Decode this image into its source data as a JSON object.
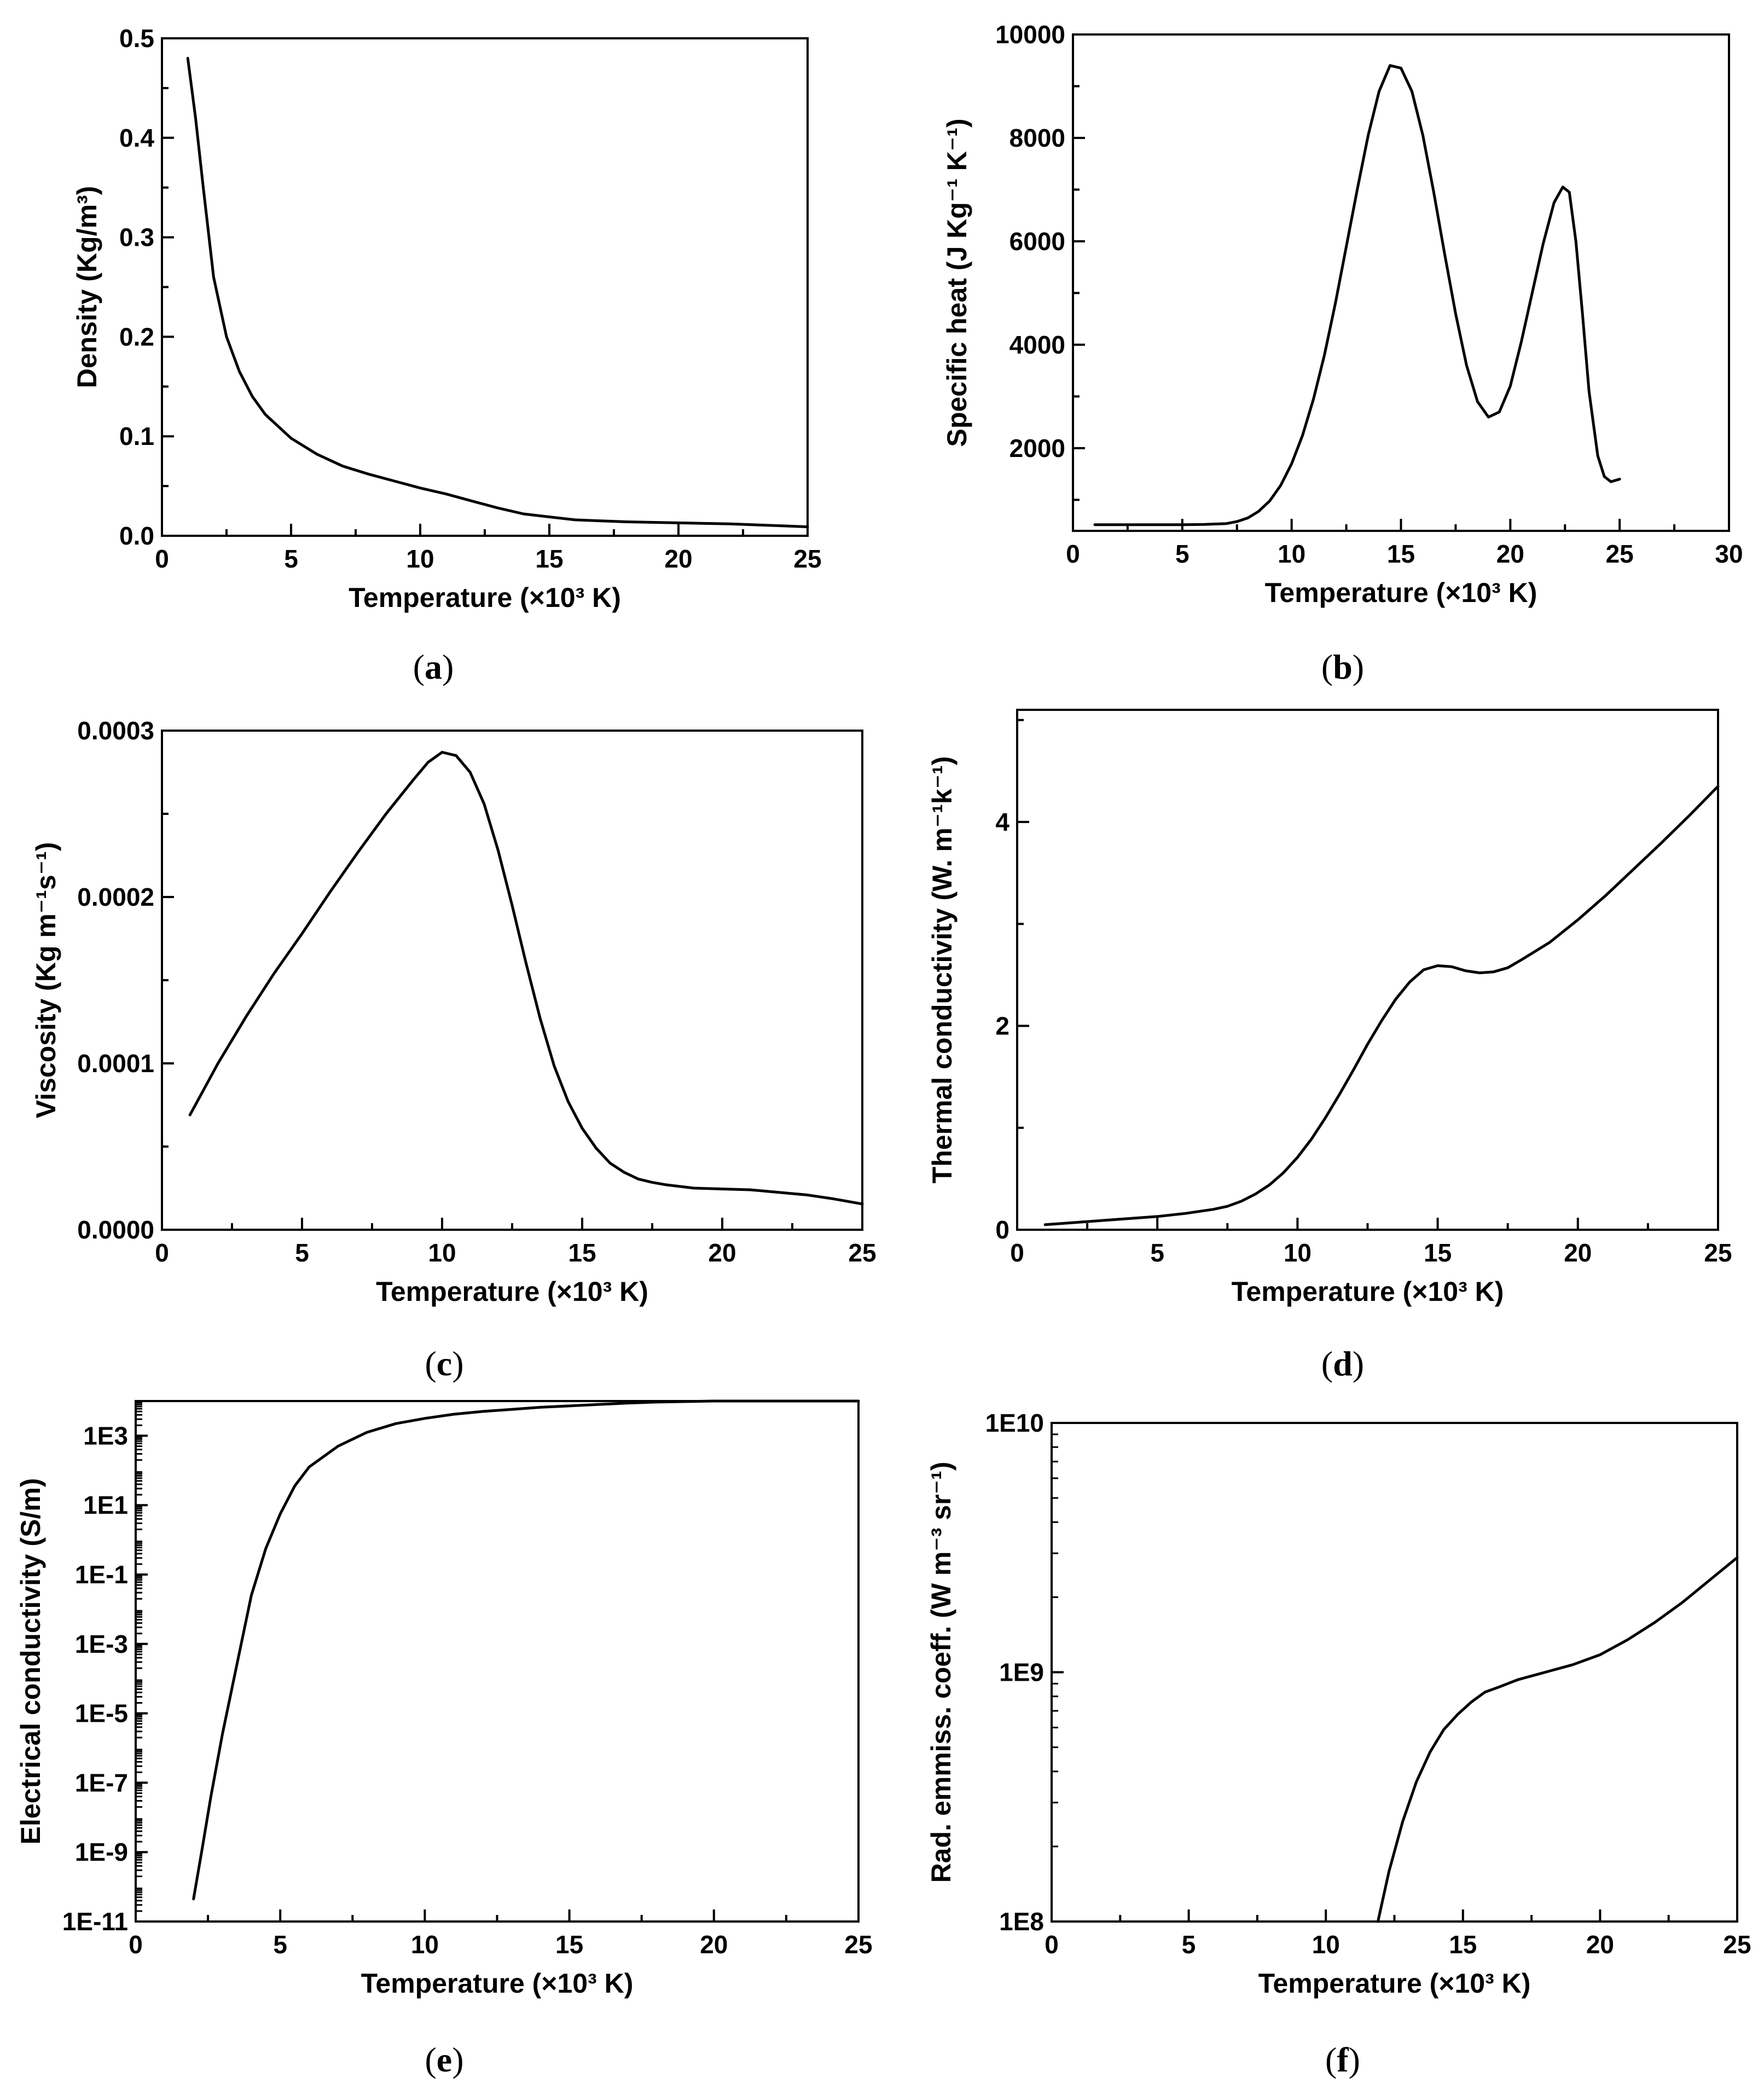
{
  "chart_data": [
    {
      "id": "a",
      "type": "line",
      "panel_label": "a",
      "xlabel": "Temperature (×10³ K)",
      "ylabel": "Density (Kg/m³)",
      "xlim": [
        0,
        25
      ],
      "ylim": [
        0,
        0.5
      ],
      "yscale": "linear",
      "x_ticks": [
        0,
        5,
        10,
        15,
        20,
        25
      ],
      "x_tick_labels": [
        "0",
        "5",
        "10",
        "15",
        "20",
        "25"
      ],
      "y_ticks": [
        0,
        0.1,
        0.2,
        0.3,
        0.4,
        0.5
      ],
      "y_tick_labels": [
        "0.0",
        "0.1",
        "0.2",
        "0.3",
        "0.4",
        "0.5"
      ],
      "series": [
        {
          "name": "Density",
          "x": [
            1.0,
            1.3,
            1.6,
            2.0,
            2.5,
            3.0,
            3.5,
            4.0,
            5.0,
            6.0,
            7.0,
            8.0,
            9.0,
            10.0,
            11.0,
            12.0,
            13.0,
            14.0,
            15.0,
            16.0,
            17.0,
            18.0,
            20.0,
            22.0,
            24.0,
            25.0
          ],
          "y": [
            0.48,
            0.42,
            0.35,
            0.26,
            0.2,
            0.165,
            0.14,
            0.122,
            0.098,
            0.082,
            0.07,
            0.062,
            0.055,
            0.048,
            0.042,
            0.035,
            0.028,
            0.022,
            0.019,
            0.016,
            0.015,
            0.014,
            0.013,
            0.012,
            0.01,
            0.009
          ]
        }
      ]
    },
    {
      "id": "b",
      "type": "line",
      "panel_label": "b",
      "xlabel": "Temperature (×10³ K)",
      "ylabel": "Specific heat (J Kg⁻¹ K⁻¹)",
      "xlim": [
        0,
        30
      ],
      "ylim": [
        400,
        10000
      ],
      "yscale": "linear",
      "x_ticks": [
        0,
        5,
        10,
        15,
        20,
        25,
        30
      ],
      "x_tick_labels": [
        "0",
        "5",
        "10",
        "15",
        "20",
        "25",
        "30"
      ],
      "y_ticks": [
        2000,
        4000,
        6000,
        8000,
        10000
      ],
      "y_tick_labels": [
        "2000",
        "4000",
        "6000",
        "8000",
        "10000"
      ],
      "series": [
        {
          "name": "Specific heat",
          "x": [
            1.0,
            3.0,
            5.0,
            6.0,
            7.0,
            7.5,
            8.0,
            8.5,
            9.0,
            9.5,
            10.0,
            10.5,
            11.0,
            11.5,
            12.0,
            12.5,
            13.0,
            13.5,
            14.0,
            14.5,
            15.0,
            15.5,
            16.0,
            16.5,
            17.0,
            17.5,
            18.0,
            18.5,
            19.0,
            19.5,
            20.0,
            20.5,
            21.0,
            21.5,
            22.0,
            22.4,
            22.7,
            23.0,
            23.3,
            23.6,
            24.0,
            24.3,
            24.6,
            25.0
          ],
          "y": [
            520,
            520,
            520,
            525,
            540,
            580,
            650,
            780,
            980,
            1280,
            1700,
            2250,
            2950,
            3800,
            4800,
            5900,
            7000,
            8050,
            8900,
            9400,
            9350,
            8900,
            8050,
            6950,
            5750,
            4600,
            3600,
            2900,
            2600,
            2700,
            3200,
            4050,
            5000,
            5950,
            6750,
            7050,
            6950,
            6000,
            4600,
            3100,
            1850,
            1450,
            1350,
            1400
          ]
        }
      ]
    },
    {
      "id": "c",
      "type": "line",
      "panel_label": "c",
      "xlabel": "Temperature (×10³ K)",
      "ylabel": "Viscosity (Kg m⁻¹s⁻¹)",
      "xlim": [
        0,
        25
      ],
      "ylim": [
        0,
        0.0003
      ],
      "yscale": "linear",
      "x_ticks": [
        0,
        5,
        10,
        15,
        20,
        25
      ],
      "x_tick_labels": [
        "0",
        "5",
        "10",
        "15",
        "20",
        "25"
      ],
      "y_ticks": [
        0,
        0.0001,
        0.0002,
        0.0003
      ],
      "y_tick_labels": [
        "0.0000",
        "0.0001",
        "0.0002",
        "0.0003"
      ],
      "series": [
        {
          "name": "Viscosity",
          "x": [
            1.0,
            2.0,
            3.0,
            4.0,
            5.0,
            6.0,
            7.0,
            8.0,
            9.0,
            9.5,
            10.0,
            10.5,
            11.0,
            11.5,
            12.0,
            12.5,
            13.0,
            13.5,
            14.0,
            14.5,
            15.0,
            15.5,
            16.0,
            16.5,
            17.0,
            17.5,
            18.0,
            19.0,
            20.0,
            21.0,
            22.0,
            23.0,
            24.0,
            25.0
          ],
          "y": [
            6.9e-05,
            0.0001,
            0.000128,
            0.000154,
            0.000178,
            0.000203,
            0.000227,
            0.00025,
            0.000271,
            0.000281,
            0.000287,
            0.000285,
            0.000275,
            0.000256,
            0.000228,
            0.000195,
            0.00016,
            0.000127,
            9.85e-05,
            7.7e-05,
            6.1e-05,
            4.9e-05,
            4e-05,
            3.45e-05,
            3.05e-05,
            2.85e-05,
            2.7e-05,
            2.5e-05,
            2.45e-05,
            2.4e-05,
            2.25e-05,
            2.1e-05,
            1.85e-05,
            1.55e-05
          ]
        }
      ]
    },
    {
      "id": "d",
      "type": "line",
      "panel_label": "d",
      "xlabel": "Temperature (×10³ K)",
      "ylabel": "Thermal conductivity (W. m⁻¹k⁻¹)",
      "xlim": [
        0,
        25
      ],
      "ylim": [
        0,
        5.1
      ],
      "yscale": "linear",
      "x_ticks": [
        0,
        5,
        10,
        15,
        20,
        25
      ],
      "x_tick_labels": [
        "0",
        "5",
        "10",
        "15",
        "20",
        "25"
      ],
      "y_ticks": [
        0,
        2,
        4
      ],
      "y_tick_labels": [
        "0",
        "2",
        "4"
      ],
      "series": [
        {
          "name": "Thermal conductivity",
          "x": [
            1.0,
            2.0,
            3.0,
            4.0,
            5.0,
            6.0,
            7.0,
            7.5,
            8.0,
            8.5,
            9.0,
            9.5,
            10.0,
            10.5,
            11.0,
            11.5,
            12.0,
            12.5,
            13.0,
            13.5,
            14.0,
            14.5,
            15.0,
            15.5,
            16.0,
            16.5,
            17.0,
            17.5,
            18.0,
            19.0,
            20.0,
            21.0,
            22.0,
            23.0,
            24.0,
            25.0
          ],
          "y": [
            0.05,
            0.07,
            0.09,
            0.11,
            0.13,
            0.16,
            0.2,
            0.23,
            0.28,
            0.35,
            0.44,
            0.56,
            0.71,
            0.89,
            1.1,
            1.33,
            1.57,
            1.82,
            2.05,
            2.26,
            2.43,
            2.55,
            2.59,
            2.58,
            2.54,
            2.52,
            2.53,
            2.57,
            2.65,
            2.82,
            3.04,
            3.28,
            3.54,
            3.8,
            4.07,
            4.35
          ]
        }
      ]
    },
    {
      "id": "e",
      "type": "line",
      "panel_label": "e",
      "xlabel": "Temperature (×10³ K)",
      "ylabel": "Electrical conductivity (S/m)",
      "xlim": [
        0,
        25
      ],
      "ylim_log10": [
        -11,
        4
      ],
      "yscale": "log",
      "x_ticks": [
        0,
        5,
        10,
        15,
        20,
        25
      ],
      "x_tick_labels": [
        "0",
        "5",
        "10",
        "15",
        "20",
        "25"
      ],
      "y_ticks_log10": [
        -11,
        -9,
        -7,
        -5,
        -3,
        -1,
        1,
        3
      ],
      "y_tick_labels": [
        "1E-11",
        "1E-9",
        "1E-7",
        "1E-5",
        "1E-3",
        "1E-1",
        "1E1",
        "1E3"
      ],
      "series": [
        {
          "name": "Electrical conductivity",
          "x": [
            2.0,
            2.3,
            2.6,
            3.0,
            3.5,
            4.0,
            4.5,
            5.0,
            5.5,
            6.0,
            7.0,
            8.0,
            9.0,
            10.0,
            11.0,
            12.0,
            13.0,
            14.0,
            15.0,
            16.0,
            17.0,
            18.0,
            20.0,
            22.0,
            24.0,
            25.0
          ],
          "y_log10": [
            -10.35,
            -8.9,
            -7.4,
            -5.6,
            -3.6,
            -1.6,
            -0.25,
            0.75,
            1.55,
            2.1,
            2.7,
            3.1,
            3.35,
            3.5,
            3.62,
            3.7,
            3.76,
            3.82,
            3.86,
            3.9,
            3.94,
            3.97,
            4.0,
            4.0,
            4.0,
            4.0
          ]
        }
      ]
    },
    {
      "id": "f",
      "type": "line",
      "panel_label": "f",
      "xlabel": "Temperature (×10³ K)",
      "ylabel": "Rad. emmiss. coeff. (W m⁻³ sr⁻¹)",
      "xlim": [
        0,
        25
      ],
      "ylim_log10": [
        8,
        10
      ],
      "yscale": "log",
      "x_ticks": [
        0,
        5,
        10,
        15,
        20,
        25
      ],
      "x_tick_labels": [
        "0",
        "5",
        "10",
        "15",
        "20",
        "25"
      ],
      "y_ticks_log10": [
        8,
        9,
        10
      ],
      "y_tick_labels": [
        "1E8",
        "1E9",
        "1E10"
      ],
      "series": [
        {
          "name": "Radiative emission coefficient",
          "x": [
            11.9,
            12.3,
            12.8,
            13.3,
            13.8,
            14.3,
            14.8,
            15.3,
            15.8,
            16.3,
            17.0,
            18.0,
            19.0,
            20.0,
            21.0,
            22.0,
            23.0,
            24.0,
            25.0
          ],
          "y_log10": [
            8.0,
            8.2,
            8.4,
            8.56,
            8.68,
            8.77,
            8.83,
            8.88,
            8.92,
            8.94,
            8.97,
            9.0,
            9.03,
            9.07,
            9.13,
            9.2,
            9.28,
            9.37,
            9.46
          ]
        }
      ]
    }
  ]
}
